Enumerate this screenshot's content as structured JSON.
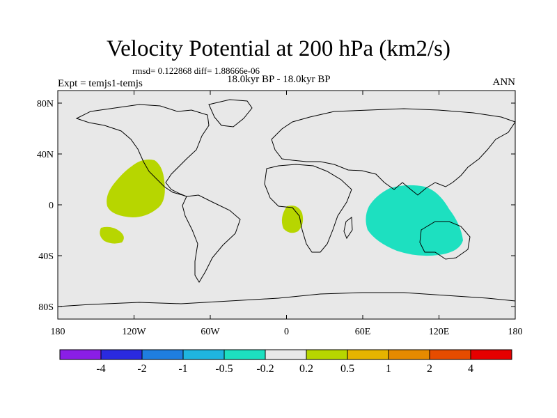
{
  "figure": {
    "title": "Velocity Potential at 200 hPa (km2/s)",
    "stats": "rmsd= 0.122868 diff= 1.88666e-06",
    "subtitle": "18.0kyr BP - 18.0kyr BP",
    "left_label": "Expt = temjs1-temjs",
    "right_label": "ANN"
  },
  "axes": {
    "lon_ticks": [
      "180",
      "120W",
      "60W",
      "0",
      "60E",
      "120E",
      "180"
    ],
    "lat_ticks": [
      "80N",
      "40N",
      "0",
      "40S",
      "80S"
    ]
  },
  "colorbar": {
    "colors": [
      "#8a1ee6",
      "#2a2ae0",
      "#1f7ee0",
      "#1fb5e0",
      "#1de0c0",
      "#e8e8e8",
      "#b7d600",
      "#e6b400",
      "#e68a00",
      "#e64c00",
      "#e60000"
    ],
    "labels": [
      "-4",
      "-2",
      "-1",
      "-0.5",
      "-0.2",
      "0.2",
      "0.5",
      "1",
      "2",
      "4"
    ]
  },
  "colors": {
    "ocean_background": "#e8e8e8",
    "positive_anomaly": "#b7d600",
    "negative_anomaly": "#1de0c0"
  }
}
